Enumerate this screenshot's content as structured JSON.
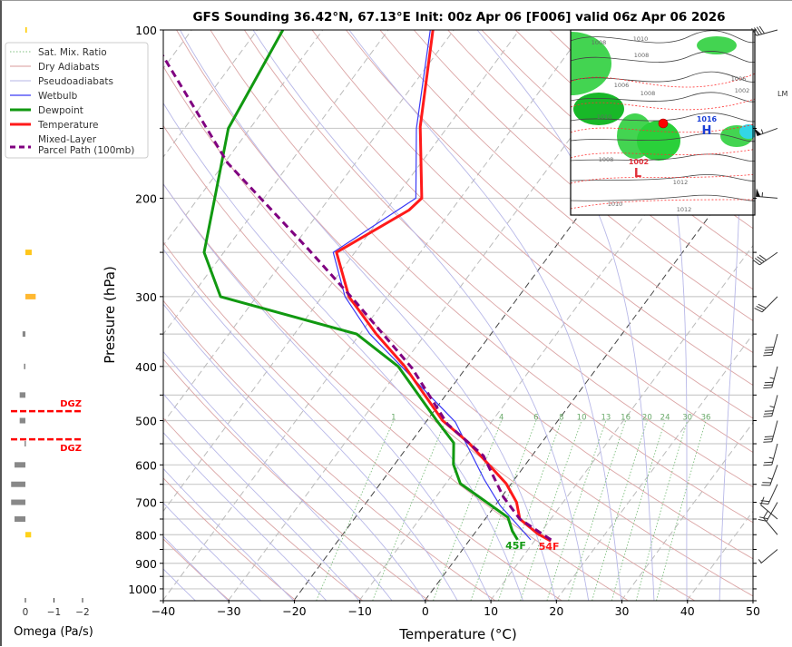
{
  "chart_data": {
    "type": "line",
    "title": "GFS Sounding 36.42°N, 67.13°E Init: 00z Apr 06 [F006] valid 06z Apr 06 2026",
    "xlabel": "Temperature (°C)",
    "ylabel": "Pressure (hPa)",
    "xlim": [
      -40,
      50
    ],
    "ylim": [
      1050,
      100
    ],
    "xticks": [
      -40,
      -30,
      -20,
      -10,
      0,
      10,
      20,
      30,
      40,
      50
    ],
    "yticks": [
      100,
      200,
      300,
      400,
      500,
      600,
      700,
      800,
      900,
      1000
    ],
    "grid": true,
    "legend_position": "upper-left-outside",
    "legend": [
      {
        "label": "Sat. Mix. Ratio",
        "color": "#7fbf7f",
        "style": "dotted"
      },
      {
        "label": "Dry Adiabats",
        "color": "#d99a9a",
        "style": "solid"
      },
      {
        "label": "Pseudoadiabats",
        "color": "#b4b4e6",
        "style": "solid"
      },
      {
        "label": "Wetbulb",
        "color": "#3a3af5",
        "style": "solid"
      },
      {
        "label": "Dewpoint",
        "color": "#119911",
        "style": "solid-thick"
      },
      {
        "label": "Temperature",
        "color": "#ff1a1a",
        "style": "solid-thick"
      },
      {
        "label": "Mixed-Layer\nParcel Path (100mb)",
        "color": "#800080",
        "style": "dashed"
      }
    ],
    "series": [
      {
        "name": "Temperature",
        "color": "#ff1a1a",
        "points": [
          [
            821,
            12.5
          ],
          [
            796,
            9.6
          ],
          [
            750,
            5.3
          ],
          [
            700,
            2.9
          ],
          [
            648,
            -0.8
          ],
          [
            548,
            -11.1
          ],
          [
            500,
            -17.6
          ],
          [
            400,
            -29.5
          ],
          [
            350,
            -37.5
          ],
          [
            300,
            -45.9
          ],
          [
            250,
            -52.8
          ],
          [
            210,
            -46.5
          ],
          [
            200,
            -45.9
          ],
          [
            149,
            -54.2
          ],
          [
            100,
            -63.2
          ]
        ]
      },
      {
        "name": "Dewpoint",
        "color": "#119911",
        "points": [
          [
            817,
            7.3
          ],
          [
            788,
            5.5
          ],
          [
            745,
            3.3
          ],
          [
            712,
            -0.3
          ],
          [
            648,
            -7.8
          ],
          [
            599,
            -11
          ],
          [
            548,
            -13.4
          ],
          [
            500,
            -18.5
          ],
          [
            400,
            -30.5
          ],
          [
            350,
            -40.5
          ],
          [
            300,
            -65.5
          ],
          [
            250,
            -73
          ],
          [
            200,
            -77.5
          ],
          [
            150,
            -83.3
          ],
          [
            100,
            -86.1
          ]
        ]
      },
      {
        "name": "Wetbulb",
        "color": "#3a3af5",
        "points": [
          [
            817,
            9.3
          ],
          [
            767,
            5.5
          ],
          [
            710,
            0.8
          ],
          [
            636,
            -4.7
          ],
          [
            503,
            -15.5
          ],
          [
            400,
            -30
          ],
          [
            350,
            -38.5
          ],
          [
            300,
            -46.5
          ],
          [
            250,
            -53.3
          ],
          [
            200,
            -46.8
          ],
          [
            150,
            -54.6
          ],
          [
            100,
            -63.6
          ]
        ]
      },
      {
        "name": "Mixed-Layer Parcel Path (100mb)",
        "color": "#800080",
        "points": [
          [
            817,
            12.4
          ],
          [
            750,
            5.3
          ],
          [
            685,
            0.3
          ],
          [
            578,
            -7.4
          ],
          [
            507,
            -16.5
          ],
          [
            402,
            -28.3
          ],
          [
            304,
            -44.8
          ],
          [
            247,
            -57.4
          ],
          [
            173,
            -79.5
          ],
          [
            111,
            -101.6
          ]
        ]
      }
    ],
    "isotherms_highlight": [
      0,
      -20
    ],
    "mixing_ratio_lines": [
      1,
      2,
      4,
      6,
      8,
      10,
      13,
      16,
      20,
      24,
      30,
      36
    ],
    "mixing_ratio_labels": [
      "1",
      "4",
      "6",
      "8",
      "10",
      "13",
      "16",
      "20",
      "24",
      "30",
      "36"
    ],
    "surface_labels": {
      "dewpoint": "45F",
      "temperature": "54F"
    },
    "wind_barbs": [
      {
        "p": 100,
        "dir": 255,
        "kt": 40
      },
      {
        "p": 150,
        "dir": 250,
        "kt": 55
      },
      {
        "p": 200,
        "dir": 275,
        "kt": 55
      },
      {
        "p": 250,
        "dir": 235,
        "kt": 40
      },
      {
        "p": 300,
        "dir": 225,
        "kt": 30
      },
      {
        "p": 350,
        "dir": 195,
        "kt": 40
      },
      {
        "p": 400,
        "dir": 195,
        "kt": 35
      },
      {
        "p": 450,
        "dir": 195,
        "kt": 35
      },
      {
        "p": 500,
        "dir": 195,
        "kt": 30
      },
      {
        "p": 550,
        "dir": 195,
        "kt": 25
      },
      {
        "p": 600,
        "dir": 200,
        "kt": 25
      },
      {
        "p": 650,
        "dir": 205,
        "kt": 20
      },
      {
        "p": 700,
        "dir": 210,
        "kt": 20
      },
      {
        "p": 750,
        "dir": 310,
        "kt": 10
      },
      {
        "p": 800,
        "dir": 320,
        "kt": 10
      },
      {
        "p": 850,
        "dir": 230,
        "kt": 5
      }
    ],
    "side_label": "LM",
    "omega": {
      "xlabel": "Omega (Pa/s)",
      "xticks": [
        "0",
        "−1",
        "−2"
      ],
      "xtick_values": [
        0,
        -1,
        -2
      ],
      "bars": [
        {
          "p": 100,
          "value": -0.05,
          "color": "#ffcc00"
        },
        {
          "p": 250,
          "value": -0.22,
          "color": "#ffc61a"
        },
        {
          "p": 300,
          "value": -0.36,
          "color": "#ffb830"
        },
        {
          "p": 350,
          "value": 0.1,
          "color": "#888888"
        },
        {
          "p": 400,
          "value": 0.05,
          "color": "#888888"
        },
        {
          "p": 450,
          "value": 0.2,
          "color": "#888888"
        },
        {
          "p": 500,
          "value": 0.2,
          "color": "#888888"
        },
        {
          "p": 550,
          "value": 0.03,
          "color": "#888888"
        },
        {
          "p": 600,
          "value": 0.38,
          "color": "#888888"
        },
        {
          "p": 650,
          "value": 0.5,
          "color": "#888888"
        },
        {
          "p": 700,
          "value": 0.5,
          "color": "#888888"
        },
        {
          "p": 750,
          "value": 0.38,
          "color": "#888888"
        },
        {
          "p": 800,
          "value": -0.2,
          "color": "#ffd21a"
        }
      ],
      "dgz": {
        "top_p": 481,
        "bottom_p": 540,
        "label": "DGZ",
        "color": "#ff0000"
      }
    },
    "map_inset": {
      "high": {
        "letter": "H",
        "value": "1016",
        "color": "#1a3fd6"
      },
      "low": {
        "letter": "L",
        "value": "1002",
        "color": "#e0303a"
      },
      "contour_labels": [
        "1008",
        "1010",
        "1008",
        "1006",
        "1008",
        "1010",
        "1012",
        "1006",
        "1002",
        "1008",
        "1010",
        "1012"
      ],
      "location_marker_color": "#ff0000"
    }
  }
}
